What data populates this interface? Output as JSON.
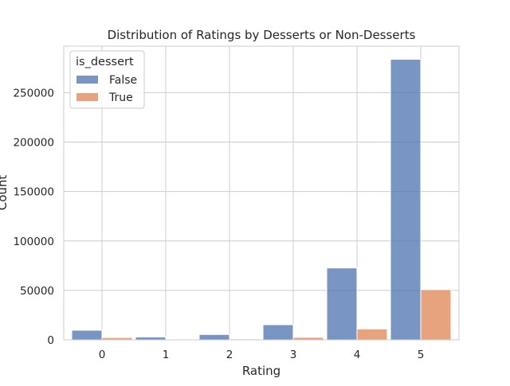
{
  "chart_data": {
    "type": "bar",
    "title": "Distribution of Ratings by Desserts or Non-Desserts",
    "xlabel": "Rating",
    "ylabel": "Count",
    "categories": [
      "0",
      "1",
      "2",
      "3",
      "4",
      "5"
    ],
    "series": [
      {
        "name": "False",
        "color": "#4C72B0",
        "values": [
          9700,
          2900,
          5400,
          15300,
          72700,
          283700
        ]
      },
      {
        "name": "True",
        "color": "#DD8452",
        "values": [
          2300,
          500,
          900,
          2500,
          11000,
          50700
        ]
      }
    ],
    "ylim": [
      0,
      297000
    ],
    "yticks": [
      0,
      50000,
      100000,
      150000,
      200000,
      250000
    ],
    "grid": true,
    "legend": {
      "title": "is_dessert",
      "position": "top-left"
    }
  }
}
